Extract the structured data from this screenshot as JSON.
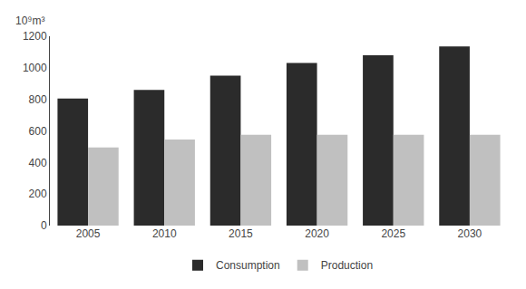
{
  "chart_data": {
    "type": "bar",
    "ylabel": "10⁹m³",
    "categories": [
      "2005",
      "2010",
      "2015",
      "2020",
      "2025",
      "2030"
    ],
    "series": [
      {
        "name": "Consumption",
        "color": "#2b2b2b",
        "values": [
          805,
          860,
          950,
          1030,
          1080,
          1135
        ]
      },
      {
        "name": "Production",
        "color": "#c0c0c0",
        "values": [
          495,
          545,
          575,
          575,
          575,
          575
        ]
      }
    ],
    "ylim": [
      0,
      1200
    ],
    "yticks": [
      0,
      200,
      400,
      600,
      800,
      1000,
      1200
    ],
    "grid": false,
    "legend": "bottom"
  }
}
